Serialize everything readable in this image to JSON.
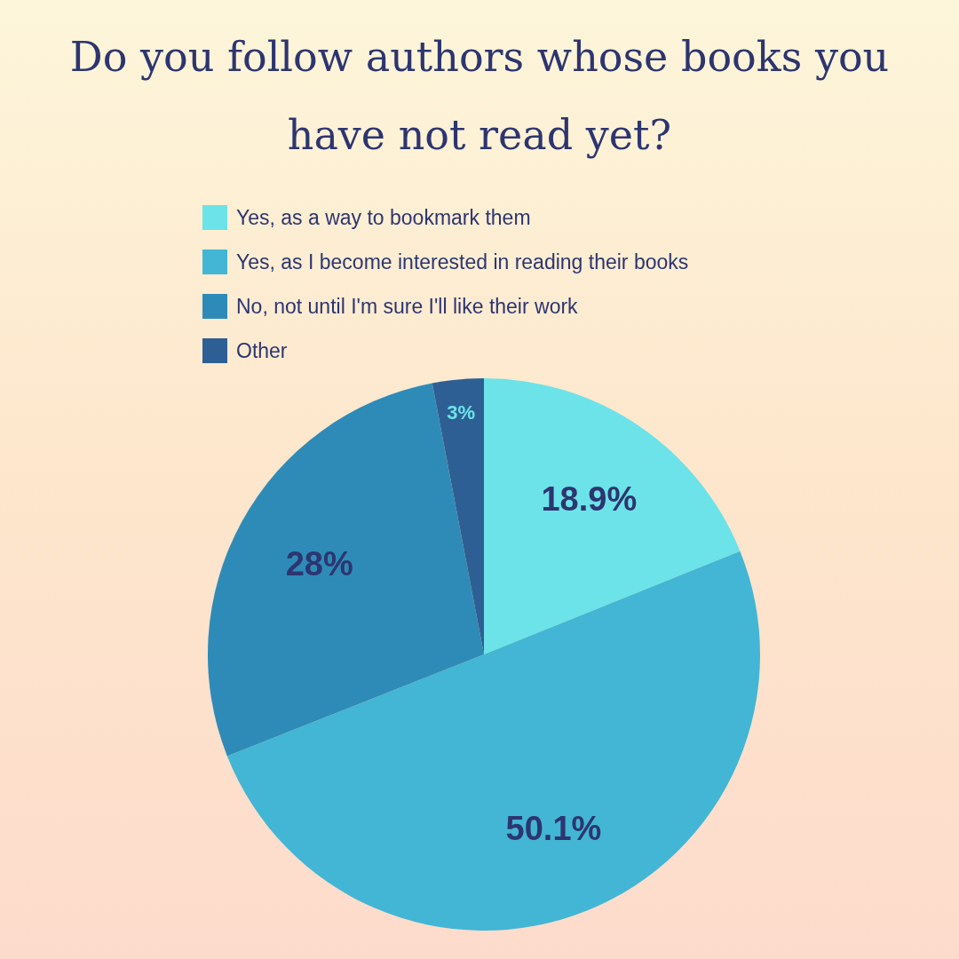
{
  "chart_data": {
    "type": "pie",
    "title": "Do you follow authors whose books you have not read yet?",
    "categories": [
      "Yes, as a way to bookmark them",
      "Yes, as I become interested in reading their books",
      "No, not until I'm sure I'll like their work",
      "Other"
    ],
    "values": [
      18.9,
      50.1,
      28,
      3
    ],
    "colors": [
      "#6ce3e8",
      "#42b6d4",
      "#2e8bb8",
      "#2e5f94"
    ],
    "value_labels": [
      "18.9%",
      "50.1%",
      "28%",
      "3%"
    ],
    "legend": "top"
  }
}
